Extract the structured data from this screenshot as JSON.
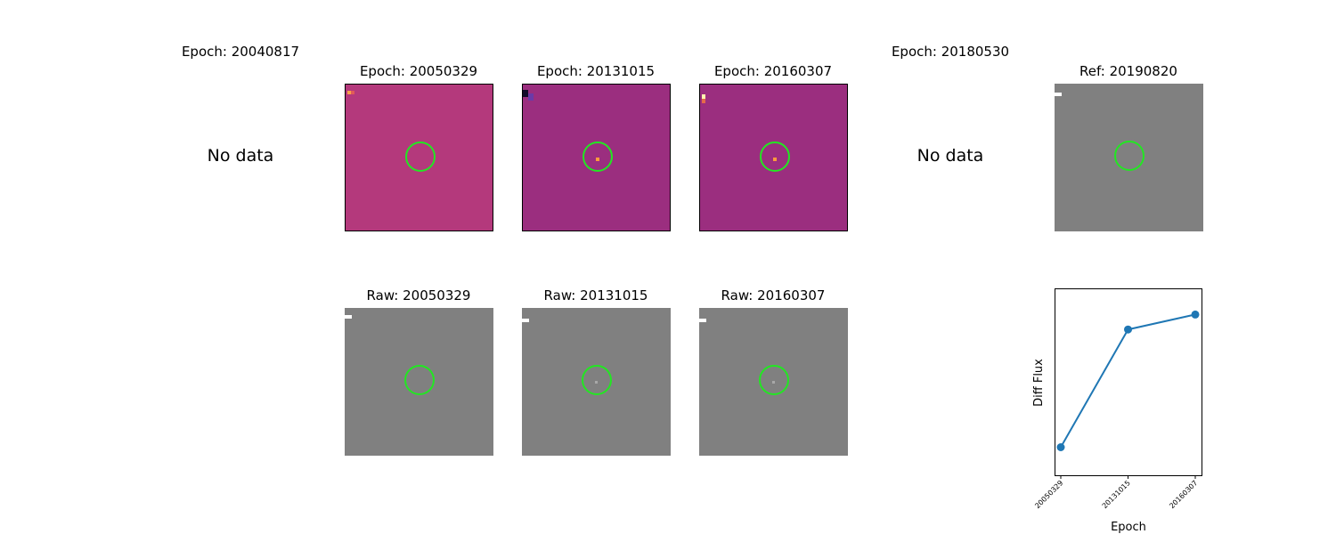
{
  "top_row": {
    "epoch_20040817_title": "Epoch: 20040817",
    "epoch_20040817_status": "No data",
    "epoch_20050329_title": "Epoch: 20050329",
    "epoch_20131015_title": "Epoch: 20131015",
    "epoch_20160307_title": "Epoch: 20160307",
    "epoch_20180530_title": "Epoch: 20180530",
    "epoch_20180530_status": "No data",
    "ref_title": "Ref: 20190820"
  },
  "bottom_row": {
    "raw_20050329_title": "Raw: 20050329",
    "raw_20131015_title": "Raw: 20131015",
    "raw_20160307_title": "Raw: 20160307"
  },
  "colors": {
    "aperture": "#22e722",
    "diff_panel_a": "#b4397c",
    "diff_panel_b": "#9b2e7f",
    "raw_panel": "#808080",
    "series": "#1f77b4"
  },
  "chart_data": {
    "type": "line",
    "x": [
      "20050329",
      "20131015",
      "20160307"
    ],
    "y": [
      0.15,
      0.78,
      0.86
    ],
    "ylim": [
      0.0,
      1.0
    ],
    "xlabel": "Epoch",
    "ylabel": "Diff Flux",
    "ytick_labels": false,
    "grid": false
  }
}
